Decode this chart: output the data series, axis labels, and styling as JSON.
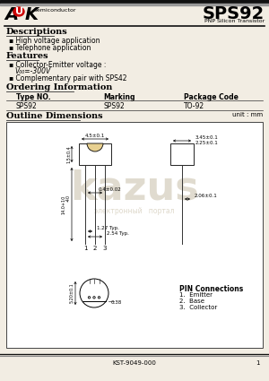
{
  "title": "SPS92",
  "subtitle": "PNP Silicon Transistor",
  "company_sub": "Semiconductor",
  "desc_title": "Descriptions",
  "desc_items": [
    "High voltage application",
    "Telephone application"
  ],
  "feat_title": "Features",
  "feat_line1": "Collector-Emitter voltage :",
  "feat_line2": "V₀₀=-300V",
  "feat_line3": "Complementary pair with SPS42",
  "order_title": "Ordering Information",
  "table_headers": [
    "Type NO.",
    "Marking",
    "Package Code"
  ],
  "table_row": [
    "SPS92",
    "SPS92",
    "TO-92"
  ],
  "outline_title": "Outline Dimensions",
  "unit_label": "unit : mm",
  "dim_width": "4.5±0.1",
  "dim_height_body": "1.5±0.4",
  "dim_lead": "0.4±0.02",
  "dim_lead_long": "14.0+10-40",
  "dim_right1": "3.45±0.1",
  "dim_right2": "2.25±0.1",
  "dim_right3": "2.06±0.1",
  "dim_127": "1.27 Typ.",
  "dim_254": "2.54 Typ.",
  "dim_circle_d": "5.20±0.1",
  "dim_flat": "0.38",
  "pin_title": "PIN Connections",
  "pin1": "1.  Emitter",
  "pin2": "2.  Base",
  "pin3": "3.  Collector",
  "footer": "KST-9049-000",
  "bg_color": "#f2ede3",
  "white": "#ffffff",
  "black": "#000000",
  "wm_color": "#c8bfa8",
  "body_fill": "#e8d090",
  "line_color": "#333333"
}
